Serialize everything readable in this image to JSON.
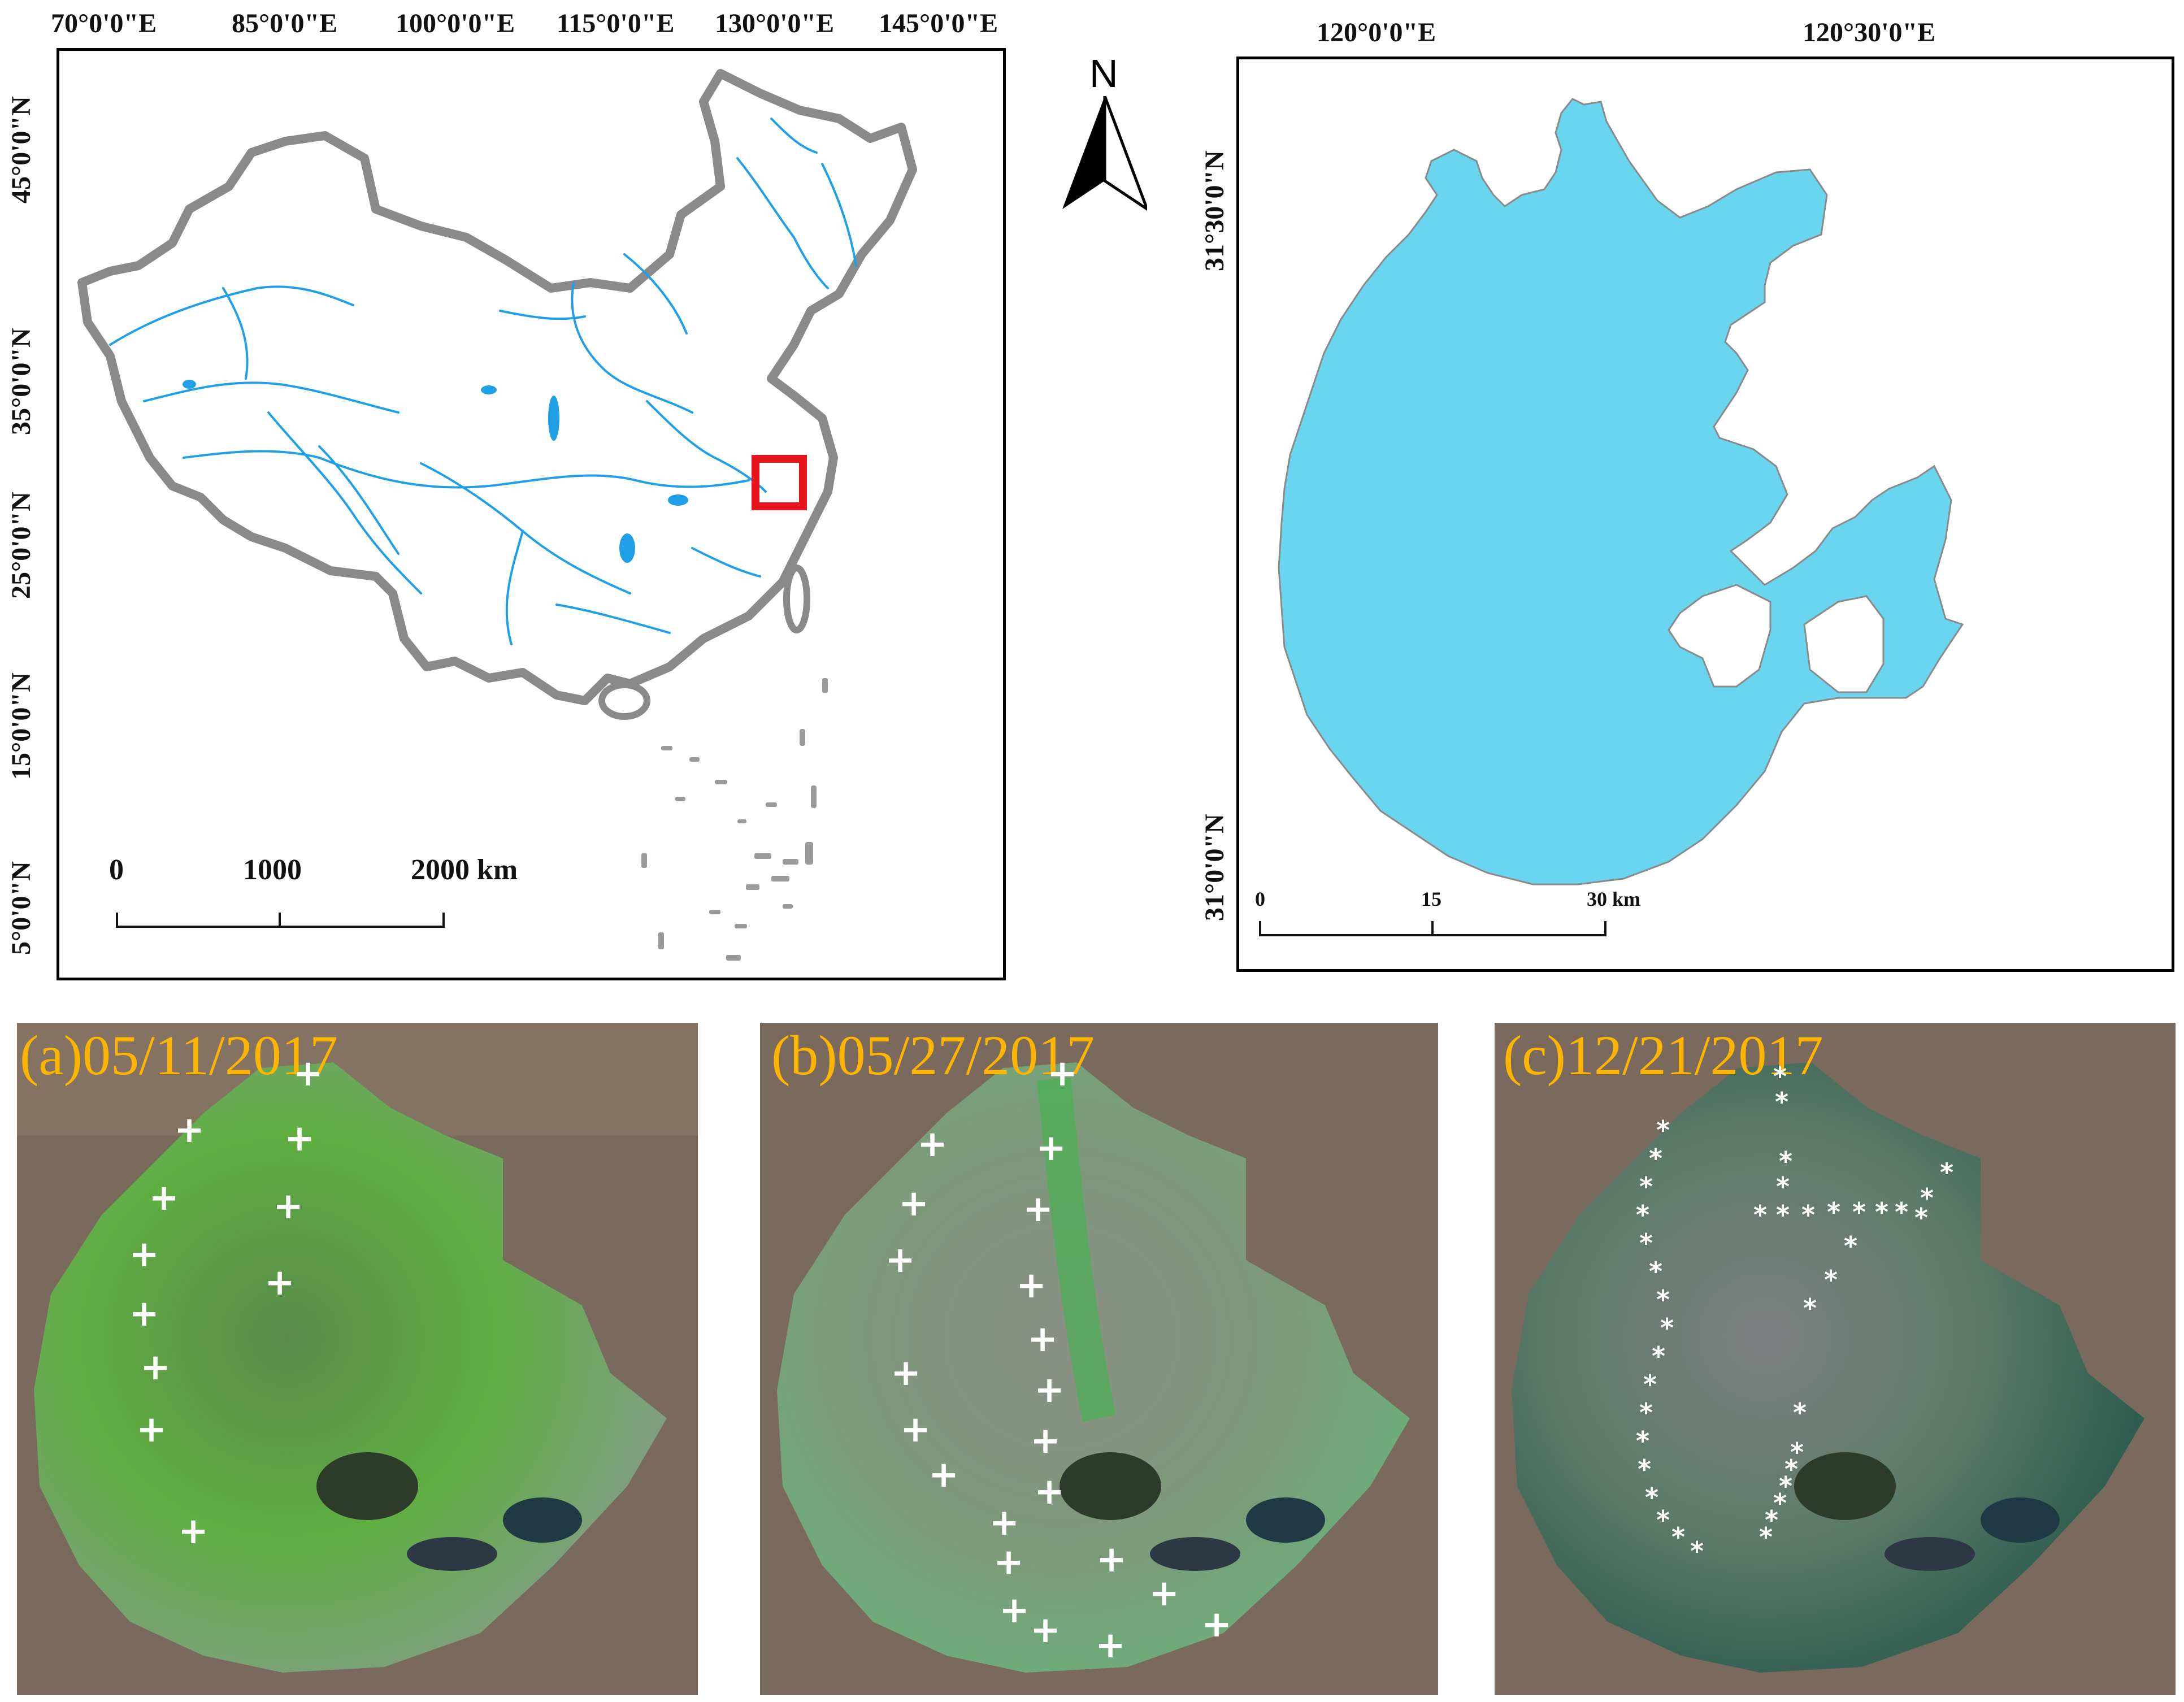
{
  "china_map": {
    "lon_labels": [
      "70°0'0\"E",
      "85°0'0\"E",
      "100°0'0\"E",
      "115°0'0\"E",
      "130°0'0\"E",
      "145°0'0\"E"
    ],
    "lat_labels": [
      "45°0'0\"N",
      "35°0'0\"N",
      "25°0'0\"N",
      "15°0'0\"N",
      "5°0'0\"N"
    ],
    "scale": {
      "zero": "0",
      "mid": "1000",
      "end": "2000 km"
    },
    "colors": {
      "border": "#8a8a8a",
      "rivers": "#1fa0e6",
      "highlight": "#e8141b"
    }
  },
  "north_arrow": {
    "label": "N"
  },
  "lake_map": {
    "lon_labels": [
      "120°0'0\"E",
      "120°30'0\"E"
    ],
    "lat_labels": [
      "31°30'0\"N",
      "31°0'0\"N"
    ],
    "scale": {
      "zero": "0",
      "mid": "15",
      "end": "30 km"
    },
    "colors": {
      "lake": "#69d5ef",
      "outline": "#8a8a8a"
    }
  },
  "panels": [
    {
      "label": "(a)05/11/2017",
      "marker": "plus-icon"
    },
    {
      "label": "(b)05/27/2017",
      "marker": "plus-icon"
    },
    {
      "label": "(c)12/21/2017",
      "marker": "star-icon"
    }
  ]
}
